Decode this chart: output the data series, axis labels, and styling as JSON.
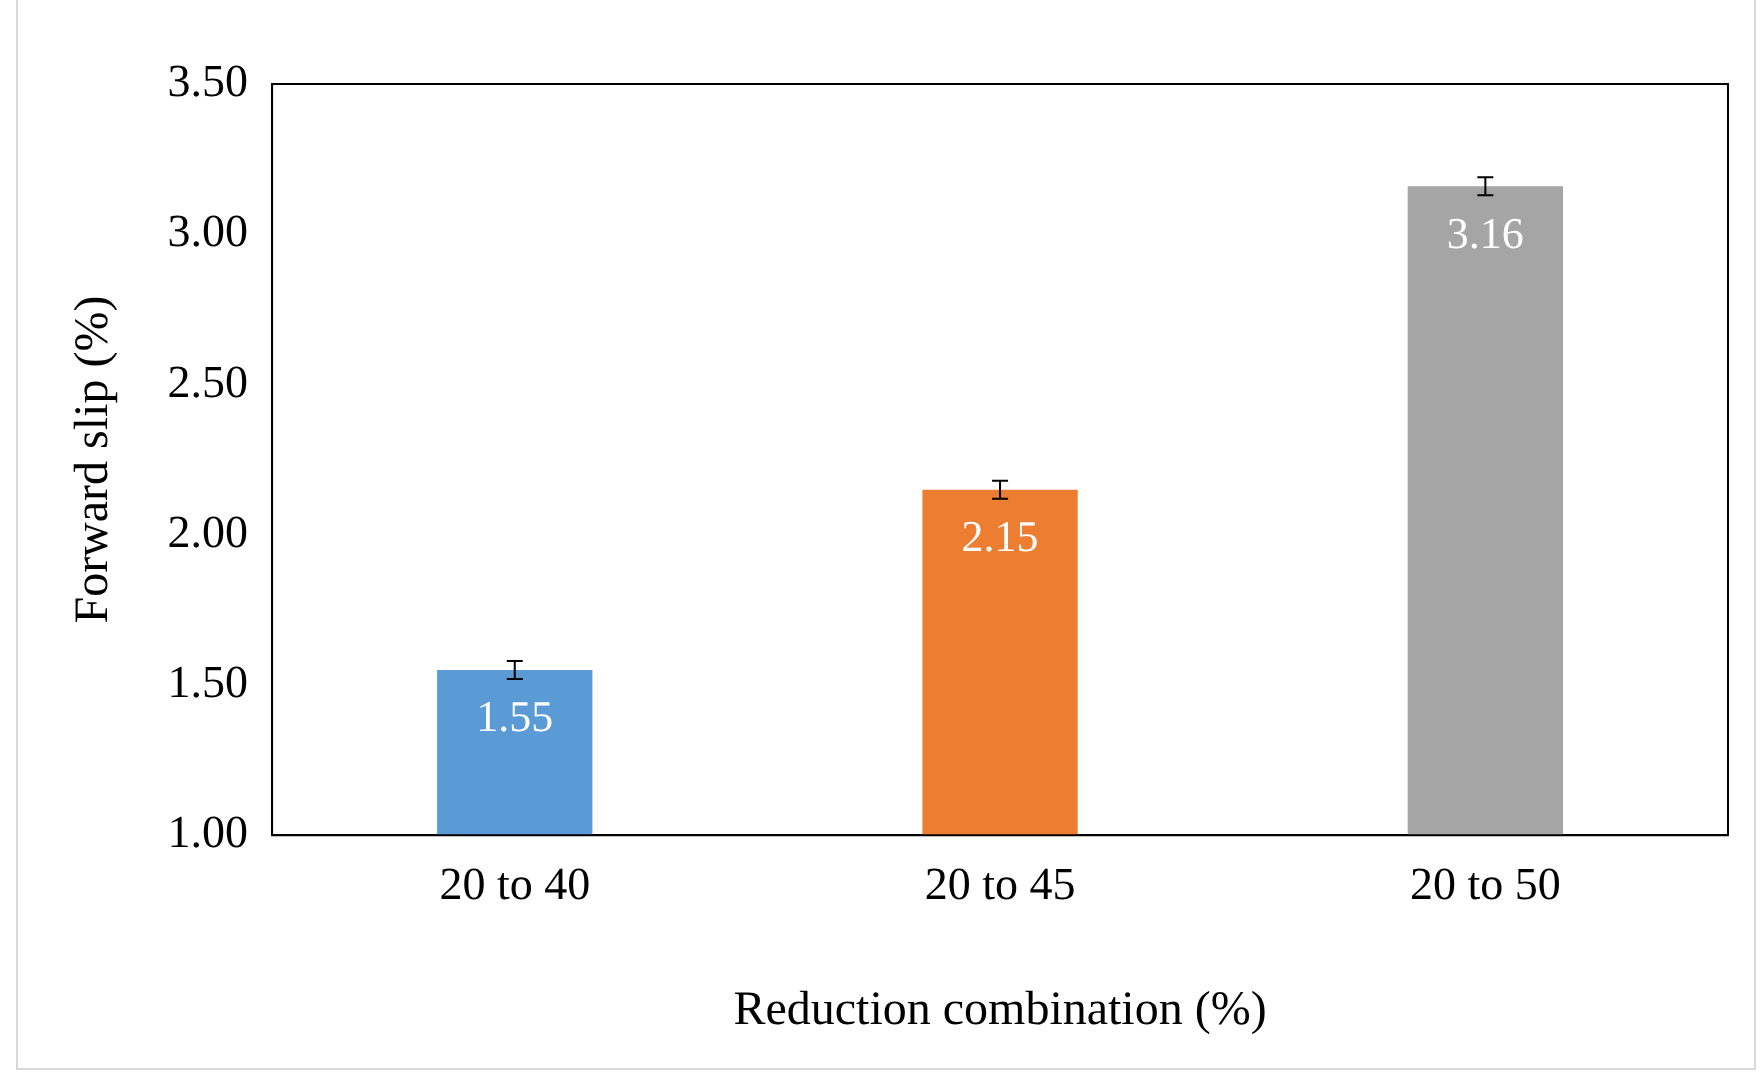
{
  "chart_data": {
    "type": "bar",
    "xlabel": "Reduction combination (%)",
    "ylabel": "Forward slip (%)",
    "categories": [
      "20 to 40",
      "20 to 45",
      "20 to 50"
    ],
    "values": [
      1.55,
      2.15,
      3.16
    ],
    "colors": [
      "#5b9bd5",
      "#ed7d31",
      "#a5a5a5"
    ],
    "errors": [
      0.03,
      0.03,
      0.03
    ],
    "ylim": [
      1.0,
      3.5
    ],
    "yticks": [
      {
        "value": 1.0,
        "label": "1.00"
      },
      {
        "value": 1.5,
        "label": "1.50"
      },
      {
        "value": 2.0,
        "label": "2.00"
      },
      {
        "value": 2.5,
        "label": "2.50"
      },
      {
        "value": 3.0,
        "label": "3.00"
      },
      {
        "value": 3.5,
        "label": "3.50"
      }
    ],
    "data_labels": true,
    "grid": false,
    "legend": false
  }
}
